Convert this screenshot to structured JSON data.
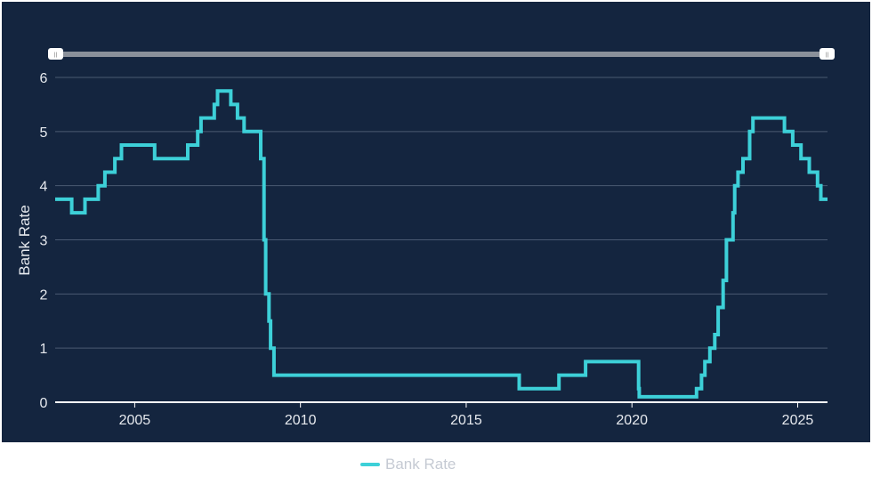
{
  "chart_data": {
    "type": "line",
    "step": true,
    "title": "",
    "xlabel": "",
    "ylabel": "Bank Rate",
    "xlim": [
      2002.6,
      2025.9
    ],
    "ylim": [
      0,
      6
    ],
    "grid": true,
    "legend_position": "bottom",
    "x_ticks": [
      "2005",
      "2010",
      "2015",
      "2020",
      "2025"
    ],
    "y_ticks": [
      "0",
      "1",
      "2",
      "3",
      "4",
      "5",
      "6"
    ],
    "series": [
      {
        "name": "Bank Rate",
        "color": "#3dd0d8",
        "points": [
          [
            2002.6,
            3.75
          ],
          [
            2003.1,
            3.5
          ],
          [
            2003.5,
            3.75
          ],
          [
            2003.9,
            4.0
          ],
          [
            2004.1,
            4.25
          ],
          [
            2004.4,
            4.5
          ],
          [
            2004.6,
            4.75
          ],
          [
            2005.6,
            4.5
          ],
          [
            2006.6,
            4.75
          ],
          [
            2006.9,
            5.0
          ],
          [
            2007.0,
            5.25
          ],
          [
            2007.4,
            5.5
          ],
          [
            2007.5,
            5.75
          ],
          [
            2007.9,
            5.5
          ],
          [
            2008.1,
            5.25
          ],
          [
            2008.3,
            5.0
          ],
          [
            2008.8,
            4.5
          ],
          [
            2008.9,
            3.0
          ],
          [
            2008.95,
            2.0
          ],
          [
            2009.05,
            1.5
          ],
          [
            2009.1,
            1.0
          ],
          [
            2009.2,
            0.5
          ],
          [
            2016.6,
            0.25
          ],
          [
            2017.8,
            0.5
          ],
          [
            2018.6,
            0.75
          ],
          [
            2020.2,
            0.25
          ],
          [
            2020.22,
            0.1
          ],
          [
            2021.95,
            0.25
          ],
          [
            2022.1,
            0.5
          ],
          [
            2022.2,
            0.75
          ],
          [
            2022.35,
            1.0
          ],
          [
            2022.5,
            1.25
          ],
          [
            2022.6,
            1.75
          ],
          [
            2022.75,
            2.25
          ],
          [
            2022.85,
            3.0
          ],
          [
            2023.05,
            3.5
          ],
          [
            2023.1,
            4.0
          ],
          [
            2023.2,
            4.25
          ],
          [
            2023.35,
            4.5
          ],
          [
            2023.55,
            5.0
          ],
          [
            2023.65,
            5.25
          ],
          [
            2024.6,
            5.0
          ],
          [
            2024.85,
            4.75
          ],
          [
            2025.1,
            4.5
          ],
          [
            2025.35,
            4.25
          ],
          [
            2025.6,
            4.0
          ],
          [
            2025.7,
            3.75
          ],
          [
            2025.9,
            3.75
          ]
        ]
      }
    ]
  },
  "legend": {
    "items": [
      {
        "label": "Bank Rate",
        "color": "#3dd0d8"
      }
    ]
  },
  "colors": {
    "background": "#14253f",
    "grid": "#4a5a72",
    "axis": "#ffffff",
    "tick_label": "#e6e9ee",
    "slider_track": "#8a909a"
  },
  "range_slider": {
    "start": "2002.6",
    "end": "2025.9",
    "handle_glyph": "II"
  }
}
